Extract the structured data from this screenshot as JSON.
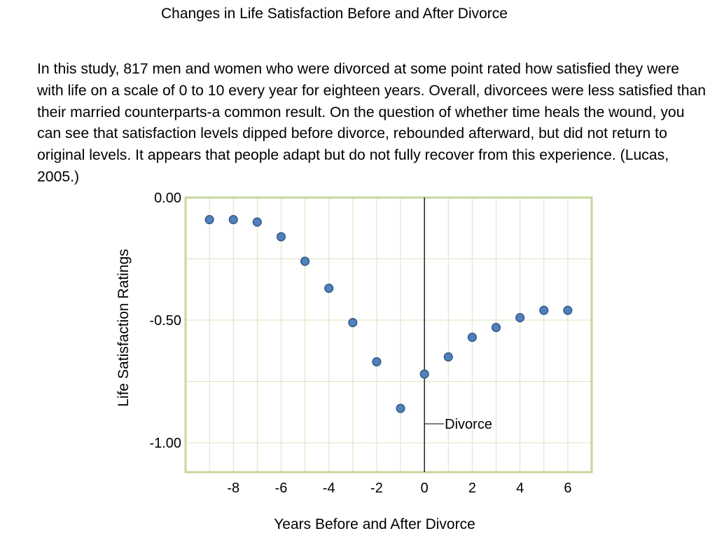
{
  "title": "Changes in Life Satisfaction Before and After Divorce",
  "description": "In this study, 817 men and women who were divorced at some point rated how satisfied they were with life on a scale of 0 to 10 every year for eighteen years. Overall, divorcees were less satisfied than their married counterparts-a common result. On the question of whether time heals the wound, you can see that satisfaction levels dipped before divorce, rebounded afterward, but did not return to original levels. It appears that people adapt but do not fully recover from this experience. (Lucas, 2005.)",
  "chart_data": {
    "type": "scatter",
    "title": "",
    "xlabel": "Years Before and After Divorce",
    "ylabel": "Life Satisfaction Ratings",
    "xlim": [
      -10,
      7
    ],
    "ylim": [
      -1.12,
      0.0
    ],
    "x_ticks": [
      -8,
      -6,
      -4,
      -2,
      0,
      2,
      4,
      6
    ],
    "x_tick_labels": [
      "-8",
      "-6",
      "-4",
      "-2",
      "0",
      "2",
      "4",
      "6"
    ],
    "y_ticks": [
      0.0,
      -0.5,
      -1.0
    ],
    "y_tick_labels": [
      "0.00",
      "-0.50",
      "-1.00"
    ],
    "grid": true,
    "series": [
      {
        "x": [
          -9,
          -8,
          -7,
          -6,
          -5,
          -4,
          -3,
          -2,
          -1,
          0,
          1,
          2,
          3,
          4,
          5,
          6
        ],
        "y": [
          -0.09,
          -0.09,
          -0.1,
          -0.16,
          -0.26,
          -0.37,
          -0.51,
          -0.67,
          -0.86,
          -0.72,
          -0.65,
          -0.57,
          -0.53,
          -0.49,
          -0.46,
          -0.46
        ]
      }
    ],
    "annotation": {
      "text": "Divorce",
      "x": 0
    },
    "colors": {
      "frame": "#c4d79b",
      "grid": "#d8e4bc",
      "marker_fill": "#4f81bd",
      "marker_stroke": "#385d8a"
    }
  }
}
